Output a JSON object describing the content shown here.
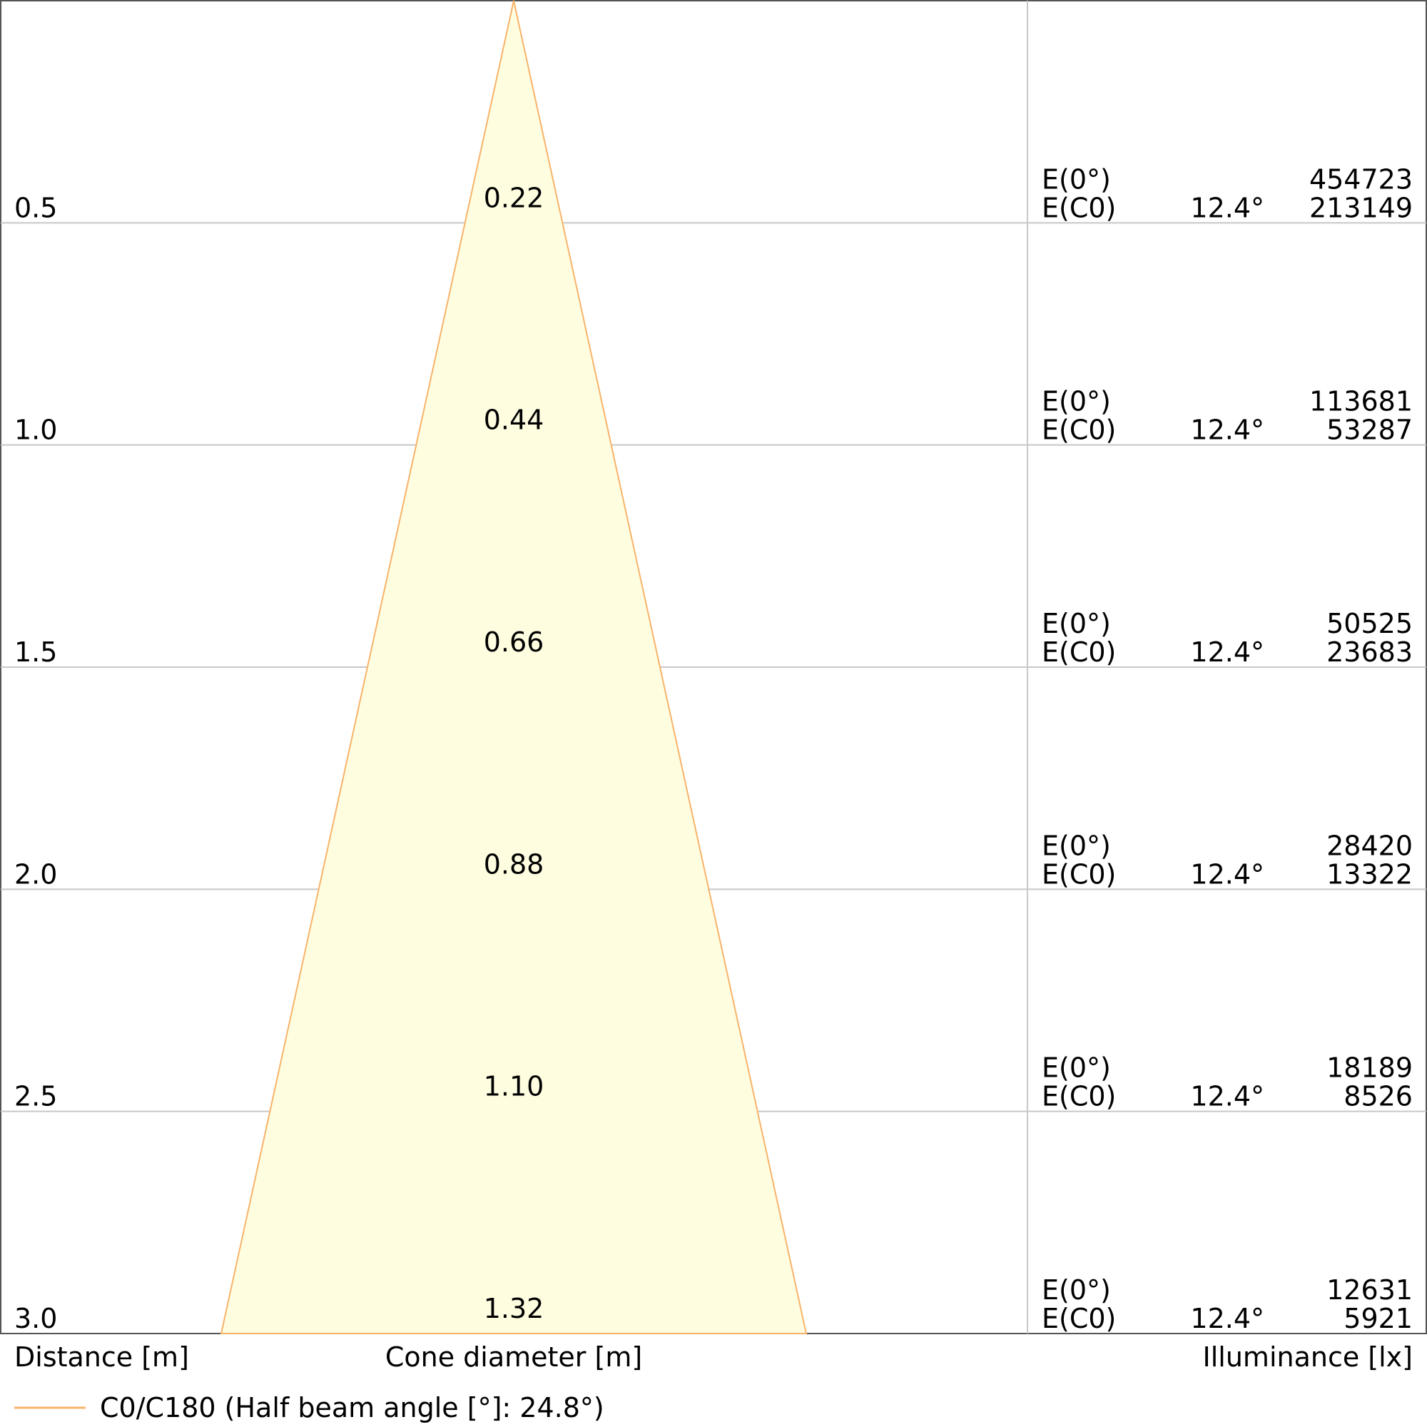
{
  "chart_data": {
    "type": "area",
    "series": [
      {
        "name": "C0/C180 (Half beam angle [°]: 24.8°)",
        "distances": [
          0.5,
          1.0,
          1.5,
          2.0,
          2.5,
          3.0
        ],
        "diameters": [
          0.22,
          0.44,
          0.66,
          0.88,
          1.1,
          1.32
        ],
        "diameter_labels": [
          "0.22",
          "0.44",
          "0.66",
          "0.88",
          "1.10",
          "1.32"
        ],
        "e_center": [
          454723,
          113681,
          50525,
          28420,
          18189,
          12631
        ],
        "e_c0": [
          213149,
          53287,
          23683,
          13322,
          8526,
          5921
        ]
      }
    ],
    "rows": [
      {
        "distance": "0.5",
        "diameter": "0.22",
        "e0_label": "E(0°)",
        "e0_value": "454723",
        "ec_label": "E(C0)",
        "ec_angle": "12.4°",
        "ec_value": "213149"
      },
      {
        "distance": "1.0",
        "diameter": "0.44",
        "e0_label": "E(0°)",
        "e0_value": "113681",
        "ec_label": "E(C0)",
        "ec_angle": "12.4°",
        "ec_value": "53287"
      },
      {
        "distance": "1.5",
        "diameter": "0.66",
        "e0_label": "E(0°)",
        "e0_value": "50525",
        "ec_label": "E(C0)",
        "ec_angle": "12.4°",
        "ec_value": "23683"
      },
      {
        "distance": "2.0",
        "diameter": "0.88",
        "e0_label": "E(0°)",
        "e0_value": "28420",
        "ec_label": "E(C0)",
        "ec_angle": "12.4°",
        "ec_value": "13322"
      },
      {
        "distance": "2.5",
        "diameter": "1.10",
        "e0_label": "E(0°)",
        "e0_value": "18189",
        "ec_label": "E(C0)",
        "ec_angle": "12.4°",
        "ec_value": "8526"
      },
      {
        "distance": "3.0",
        "diameter": "1.32",
        "e0_label": "E(0°)",
        "e0_value": "12631",
        "ec_label": "E(C0)",
        "ec_angle": "12.4°",
        "ec_value": "5921"
      }
    ],
    "xlabel": "Cone diameter [m]",
    "ylabel": "Distance [m]",
    "illuminance_label": "Illuminance [lx]",
    "legend_label": "C0/C180 (Half beam angle [°]: 24.8°)",
    "legend_position": "bottom-left",
    "ylim": [
      0,
      3.0
    ],
    "grid": true,
    "colors": {
      "cone_fill": "#fefde0",
      "cone_stroke": "#f8b36a",
      "grid": "#c8c8c8",
      "frame": "#555555"
    }
  }
}
